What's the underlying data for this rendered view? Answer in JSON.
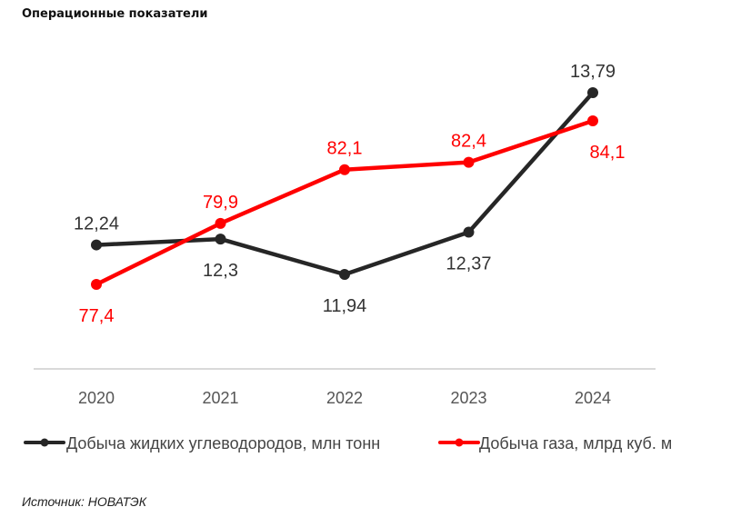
{
  "title": "Операционные показатели",
  "source": "Источник: НОВАТЭК",
  "chart_data": {
    "type": "line",
    "title": "Операционные показатели",
    "categories": [
      "2020",
      "2021",
      "2022",
      "2023",
      "2024"
    ],
    "series": [
      {
        "name": "Добыча жидких углеводородов, млн тонн",
        "color": "#262626",
        "values": [
          12.24,
          12.3,
          11.94,
          12.37,
          13.79
        ],
        "labels": [
          "12,24",
          "12,3",
          "11,94",
          "12,37",
          "13,79"
        ],
        "label_positions": [
          "above",
          "below",
          "below",
          "below",
          "above"
        ]
      },
      {
        "name": "Добыча газа, млрд куб. м",
        "color": "#ff0000",
        "values": [
          77.4,
          79.9,
          82.1,
          82.4,
          84.1
        ],
        "labels": [
          "77,4",
          "79,9",
          "82,1",
          "82,4",
          "84,1"
        ],
        "label_positions": [
          "below",
          "above",
          "above",
          "above",
          "below"
        ]
      }
    ],
    "xlabel": "",
    "ylabel": "",
    "grid": false,
    "legend": "bottom"
  }
}
